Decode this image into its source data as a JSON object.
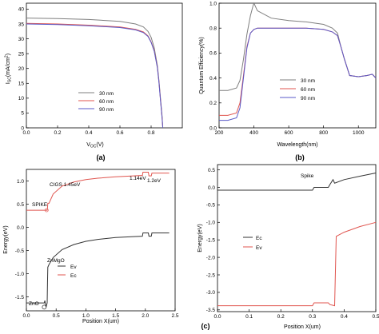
{
  "chart_data": [
    {
      "panel": "(a)",
      "type": "line",
      "xlabel": "V_OC(V)",
      "ylabel": "I_SC(mA/cm²)",
      "xlim": [
        0,
        1.0
      ],
      "ylim": [
        0,
        42
      ],
      "x_ticks": [
        "0.0",
        "0.2",
        "0.4",
        "0.6",
        "0.8"
      ],
      "y_ticks": [
        "0",
        "5",
        "10",
        "15",
        "20",
        "25",
        "30",
        "35",
        "40"
      ],
      "legend_position": "lower-center",
      "series": [
        {
          "name": "30 nm",
          "color": "#7f7f7f",
          "x": [
            0,
            0.2,
            0.4,
            0.6,
            0.7,
            0.75,
            0.78,
            0.8,
            0.82,
            0.84,
            0.85,
            0.86,
            0.87,
            0.875
          ],
          "y": [
            37.0,
            36.8,
            36.5,
            35.9,
            35.0,
            34.0,
            32.5,
            30.5,
            27.0,
            21.0,
            16.0,
            10.0,
            4.0,
            0
          ]
        },
        {
          "name": "60 nm",
          "color": "#e0554f",
          "x": [
            0,
            0.2,
            0.4,
            0.6,
            0.7,
            0.75,
            0.78,
            0.8,
            0.82,
            0.84,
            0.85,
            0.86,
            0.87,
            0.875
          ],
          "y": [
            35.2,
            35.0,
            34.6,
            34.0,
            33.2,
            32.3,
            31.0,
            29.0,
            26.0,
            20.5,
            15.5,
            9.5,
            3.5,
            0
          ]
        },
        {
          "name": "90 nm",
          "color": "#5a5ac8",
          "x": [
            0,
            0.2,
            0.4,
            0.6,
            0.7,
            0.75,
            0.78,
            0.8,
            0.82,
            0.84,
            0.85,
            0.86,
            0.87,
            0.875
          ],
          "y": [
            35.0,
            34.8,
            34.4,
            33.8,
            33.0,
            32.1,
            30.8,
            28.8,
            25.8,
            20.3,
            15.3,
            9.3,
            3.3,
            0
          ]
        }
      ]
    },
    {
      "panel": "(b)",
      "type": "line",
      "xlabel": "Wavelength(nm)",
      "ylabel": "Quantum Efficiency(%)",
      "xlim": [
        200,
        1100
      ],
      "ylim": [
        0,
        1.0
      ],
      "x_ticks": [
        "200",
        "400",
        "600",
        "800",
        "1000"
      ],
      "y_ticks": [
        "0.0",
        "0.2",
        "0.4",
        "0.6",
        "0.8",
        "1.0"
      ],
      "legend_position": "lower-right",
      "series": [
        {
          "name": "30 nm",
          "color": "#7f7f7f",
          "x": [
            200,
            250,
            300,
            320,
            340,
            360,
            380,
            395,
            400,
            420,
            500,
            600,
            700,
            800,
            850,
            880,
            900,
            920,
            950,
            1000,
            1050,
            1080,
            1100
          ],
          "y": [
            0.3,
            0.3,
            0.32,
            0.38,
            0.55,
            0.75,
            0.9,
            0.98,
            1.0,
            0.94,
            0.88,
            0.86,
            0.85,
            0.83,
            0.8,
            0.76,
            0.65,
            0.55,
            0.42,
            0.41,
            0.42,
            0.43,
            0.4
          ]
        },
        {
          "name": "60 nm",
          "color": "#e0554f",
          "x": [
            200,
            250,
            300,
            320,
            340,
            360,
            380,
            400,
            420,
            500,
            600,
            700,
            800,
            850,
            880,
            900,
            920,
            950,
            1000,
            1050,
            1080,
            1100
          ],
          "y": [
            0.1,
            0.1,
            0.12,
            0.2,
            0.42,
            0.65,
            0.76,
            0.79,
            0.8,
            0.8,
            0.8,
            0.8,
            0.79,
            0.77,
            0.74,
            0.65,
            0.55,
            0.42,
            0.41,
            0.42,
            0.43,
            0.4
          ]
        },
        {
          "name": "90 nm",
          "color": "#5a5ac8",
          "x": [
            200,
            250,
            300,
            320,
            340,
            360,
            380,
            400,
            420,
            500,
            600,
            700,
            800,
            850,
            880,
            900,
            920,
            950,
            1000,
            1050,
            1080,
            1100
          ],
          "y": [
            0.06,
            0.06,
            0.08,
            0.16,
            0.4,
            0.64,
            0.76,
            0.79,
            0.8,
            0.8,
            0.8,
            0.8,
            0.79,
            0.77,
            0.74,
            0.65,
            0.55,
            0.42,
            0.41,
            0.42,
            0.43,
            0.4
          ]
        }
      ]
    },
    {
      "panel": "(c)",
      "type": "line",
      "xlabel": "Position X(um)",
      "ylabel": "Energy(eV)",
      "xlim": [
        0,
        2.5
      ],
      "ylim": [
        -1.8,
        1.25
      ],
      "x_ticks": [
        "0.0",
        "0.5",
        "1.0",
        "1.5",
        "2.0",
        "2.5"
      ],
      "y_ticks": [
        "-1.5",
        "-1.0",
        "-0.5",
        "0.0",
        "0.5",
        "1.0"
      ],
      "legend_position": "lower-right",
      "annotations": [
        "CIGS 1.45eV",
        "SPIKE",
        "1.14eV",
        "1.2eV",
        "ZnMgO",
        "ZnO"
      ],
      "series": [
        {
          "name": "Ev",
          "color": "#333333",
          "x": [
            0,
            0.3,
            0.31,
            0.33,
            0.35,
            0.355,
            0.36,
            0.38,
            0.45,
            0.6,
            0.8,
            1.0,
            1.2,
            1.5,
            1.8,
            1.95,
            1.96,
            2.05,
            2.06,
            2.1,
            2.11,
            2.4
          ],
          "y": [
            -1.63,
            -1.63,
            -1.58,
            -1.72,
            -1.63,
            -1.2,
            -0.86,
            -0.8,
            -0.65,
            -0.48,
            -0.37,
            -0.3,
            -0.26,
            -0.22,
            -0.2,
            -0.19,
            -0.12,
            -0.12,
            -0.19,
            -0.19,
            -0.12,
            -0.12
          ]
        },
        {
          "name": "Ec",
          "color": "#e0554f",
          "x": [
            0,
            0.3,
            0.31,
            0.33,
            0.35,
            0.355,
            0.36,
            0.38,
            0.45,
            0.6,
            0.8,
            1.0,
            1.2,
            1.5,
            1.8,
            1.95,
            1.96,
            2.05,
            2.06,
            2.1,
            2.11,
            2.4
          ],
          "y": [
            0.37,
            0.37,
            0.37,
            0.37,
            0.37,
            0.42,
            0.52,
            0.52,
            0.72,
            0.89,
            0.98,
            1.03,
            1.06,
            1.09,
            1.11,
            1.12,
            1.19,
            1.19,
            1.11,
            1.11,
            1.17,
            1.17
          ]
        }
      ]
    },
    {
      "panel": "(c)",
      "type": "line",
      "xlabel": "Position X(um)",
      "ylabel": "Energy(eV)",
      "xlim": [
        0,
        0.5
      ],
      "ylim": [
        -3.55,
        0.65
      ],
      "x_ticks": [
        "0.0",
        "0.1",
        "0.2",
        "0.3",
        "0.4",
        "0.5"
      ],
      "y_ticks": [
        "-3.5",
        "-3.0",
        "-2.5",
        "-2.0",
        "-1.5",
        "-1.0",
        "-0.5",
        "0.0",
        "0.5"
      ],
      "legend_position": "center-left",
      "annotations": [
        "Spike"
      ],
      "series": [
        {
          "name": "Ec",
          "color": "#333333",
          "x": [
            0,
            0.25,
            0.3,
            0.305,
            0.35,
            0.355,
            0.365,
            0.37,
            0.4,
            0.45,
            0.5
          ],
          "y": [
            -0.08,
            -0.08,
            -0.08,
            0.0,
            0.0,
            0.08,
            0.22,
            0.12,
            0.22,
            0.32,
            0.41
          ]
        },
        {
          "name": "Ev",
          "color": "#e0554f",
          "x": [
            0,
            0.25,
            0.3,
            0.305,
            0.35,
            0.355,
            0.37,
            0.375,
            0.4,
            0.45,
            0.5
          ],
          "y": [
            -3.38,
            -3.38,
            -3.38,
            -3.3,
            -3.3,
            -3.35,
            -3.38,
            -1.4,
            -1.28,
            -1.12,
            -1.0
          ]
        }
      ]
    }
  ],
  "panel_labels": [
    "(a)",
    "(b)",
    "(c)"
  ]
}
